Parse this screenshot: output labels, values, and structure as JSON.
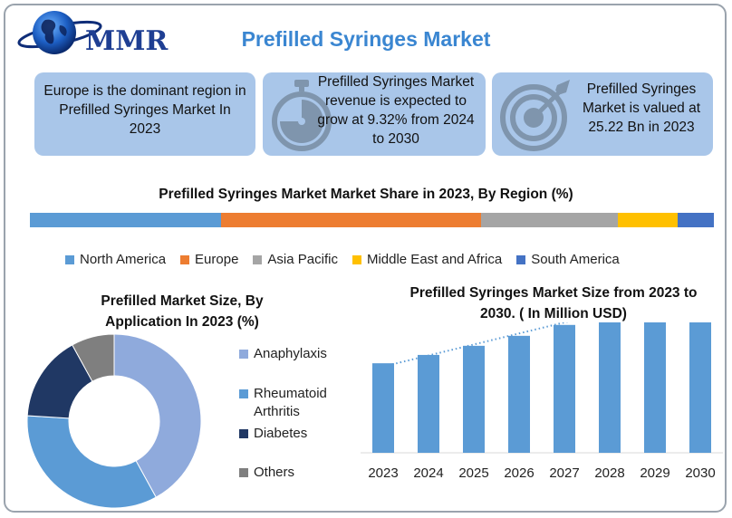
{
  "header": {
    "logo_text": "MMR",
    "title": "Prefilled Syringes Market"
  },
  "cards": [
    {
      "text": "Europe is the dominant region in Prefilled Syringes Market In 2023",
      "icon": "none"
    },
    {
      "text": "Prefilled Syringes Market revenue is expected to grow at 9.32% from 2024 to 2030",
      "icon": "stopwatch-icon"
    },
    {
      "text": "Prefilled Syringes Market is valued at 25.22 Bn in 2023",
      "icon": "target-icon"
    }
  ],
  "colors": {
    "title_blue": "#3a86d1",
    "card_bg": "#a9c6e9",
    "bar_blue": "#5b9bd5"
  },
  "chart_data": [
    {
      "type": "bar",
      "orientation": "horizontal-stacked-100",
      "title": "Prefilled Syringes Market Market Share in 2023, By Region (%)",
      "series": [
        {
          "name": "North America",
          "value": 28,
          "color": "#5b9bd5"
        },
        {
          "name": "Europe",
          "value": 38,
          "color": "#ed7d31"
        },
        {
          "name": "Asia Pacific",
          "value": 20,
          "color": "#a5a5a5"
        },
        {
          "name": "Middle East and Africa",
          "value": 8.7,
          "color": "#ffc000"
        },
        {
          "name": "South America",
          "value": 5.3,
          "color": "#4472c4"
        }
      ],
      "legend": "bottom"
    },
    {
      "type": "pie",
      "donut": true,
      "title": "Prefilled Market Size, By Application In 2023 (%)",
      "slices": [
        {
          "name": "Anaphylaxis",
          "value": 42,
          "color": "#8faadc"
        },
        {
          "name": "Rheumatoid Arthritis",
          "value": 34,
          "color": "#5b9bd5"
        },
        {
          "name": "Diabetes",
          "value": 16,
          "color": "#203864"
        },
        {
          "name": "Others",
          "value": 8,
          "color": "#7f7f7f"
        }
      ],
      "legend": "right"
    },
    {
      "type": "bar",
      "title": "Prefilled Syringes Market Size from 2023 to 2030. ( In Million  USD)",
      "categories": [
        "2023",
        "2024",
        "2025",
        "2026",
        "2027",
        "2028",
        "2029",
        "2030"
      ],
      "values": [
        25220,
        27570,
        30140,
        32950,
        36020,
        39380,
        43050,
        47060
      ],
      "ylim": [
        0,
        50000
      ],
      "trendline": "dotted linear",
      "y_axis_shown": false
    }
  ]
}
